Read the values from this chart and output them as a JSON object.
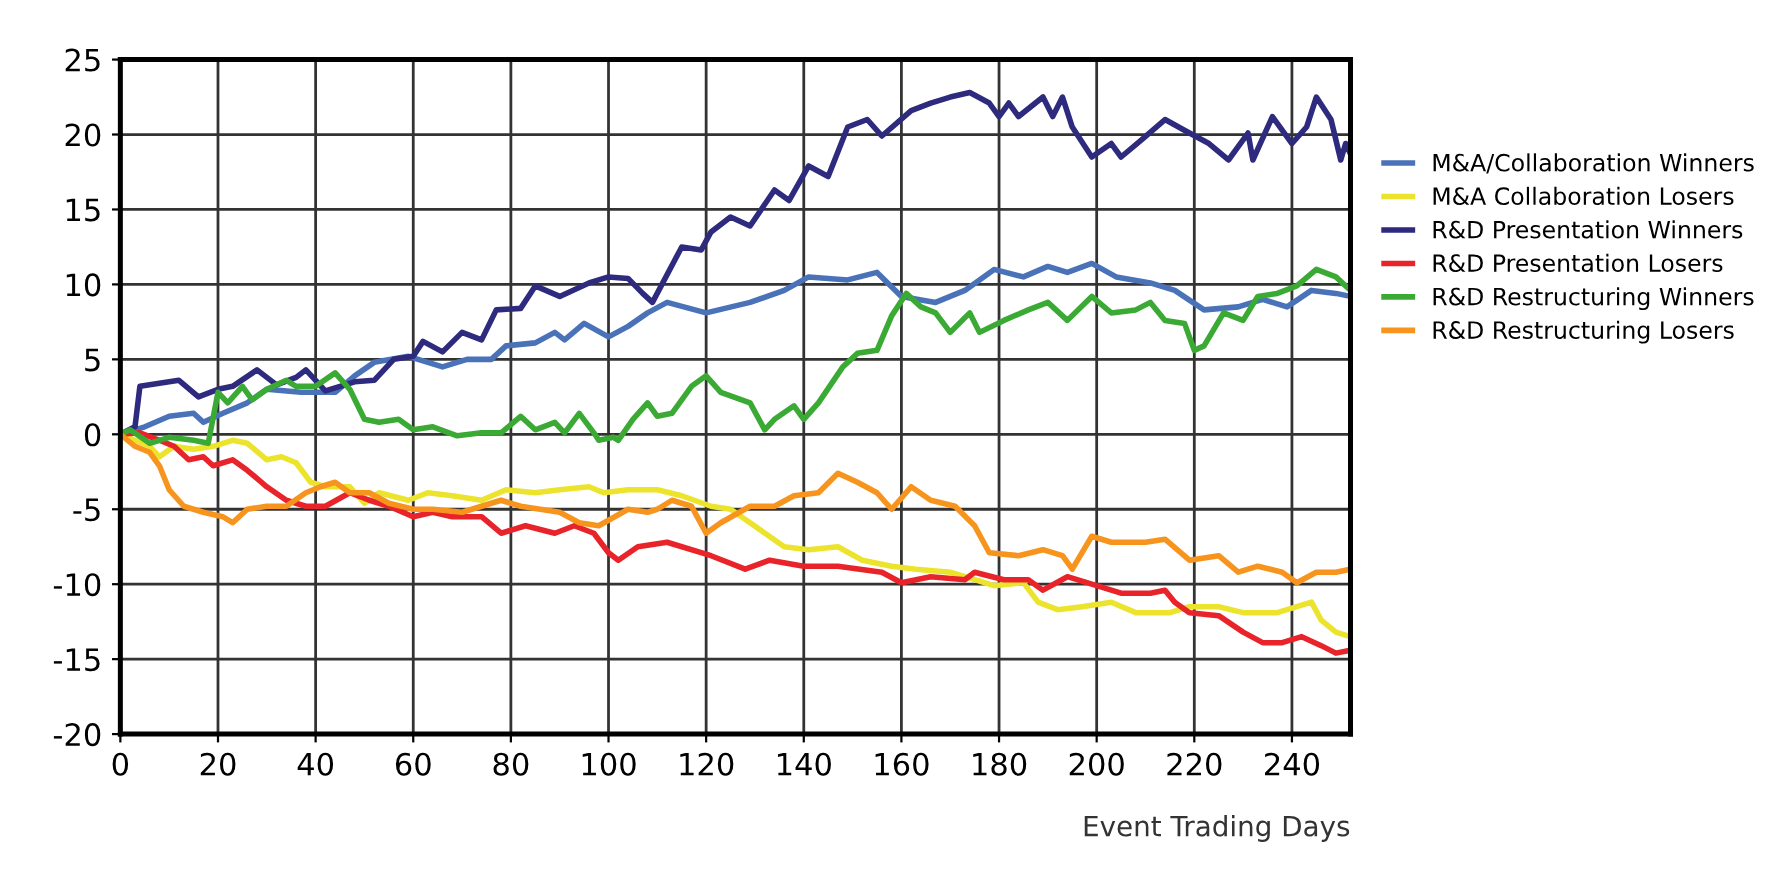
{
  "chart_data": {
    "type": "line",
    "xlabel": "Event Trading Days",
    "xlim": [
      0,
      252
    ],
    "xticks": [
      0,
      20,
      40,
      60,
      80,
      100,
      120,
      140,
      160,
      180,
      200,
      220,
      240
    ],
    "ylim": [
      -20,
      25
    ],
    "yticks": [
      -20,
      -15,
      -10,
      -5,
      0,
      5,
      10,
      15,
      20,
      25
    ],
    "grid": true,
    "legend": "right",
    "line_style": "solid",
    "marker": "none",
    "series": [
      {
        "name": "M&A/Collaboration Winners",
        "color": "#4a72b8",
        "x": [
          0,
          5,
          10,
          15,
          17,
          21,
          26,
          30,
          37,
          44,
          48,
          52,
          59,
          66,
          71,
          76,
          79,
          85,
          89,
          91,
          95,
          100,
          104,
          108,
          112,
          120,
          129,
          136,
          141,
          149,
          155,
          160,
          167,
          173,
          179,
          185,
          190,
          194,
          199,
          204,
          211,
          216,
          222,
          229,
          234,
          239,
          244,
          249,
          252
        ],
        "values": [
          0,
          0.5,
          1.2,
          1.4,
          0.8,
          1.4,
          2.1,
          3.0,
          2.8,
          2.8,
          3.9,
          4.8,
          5.2,
          4.5,
          5.0,
          5.0,
          5.9,
          6.1,
          6.8,
          6.3,
          7.4,
          6.5,
          7.2,
          8.1,
          8.8,
          8.1,
          8.8,
          9.6,
          10.5,
          10.3,
          10.8,
          9.2,
          8.8,
          9.6,
          11.0,
          10.5,
          11.2,
          10.8,
          11.4,
          10.5,
          10.1,
          9.6,
          8.3,
          8.5,
          9.0,
          8.5,
          9.6,
          9.4,
          9.2
        ]
      },
      {
        "name": "M&A Collaboration Losers",
        "color": "#ece42c",
        "x": [
          0,
          3,
          6,
          8,
          11,
          15,
          19,
          23,
          26,
          30,
          33,
          36,
          39,
          42,
          47,
          50,
          53,
          59,
          63,
          68,
          74,
          79,
          85,
          90,
          96,
          99,
          104,
          110,
          115,
          121,
          125,
          129,
          136,
          141,
          147,
          152,
          158,
          163,
          170,
          175,
          179,
          185,
          188,
          192,
          197,
          203,
          208,
          215,
          219,
          225,
          230,
          237,
          241,
          244,
          246,
          249,
          252
        ],
        "values": [
          0,
          -0.4,
          -0.8,
          -1.5,
          -0.8,
          -1.0,
          -0.8,
          -0.4,
          -0.6,
          -1.7,
          -1.5,
          -1.9,
          -3.2,
          -3.5,
          -3.5,
          -4.6,
          -3.9,
          -4.4,
          -3.9,
          -4.1,
          -4.4,
          -3.7,
          -3.9,
          -3.7,
          -3.5,
          -3.9,
          -3.7,
          -3.7,
          -4.1,
          -4.8,
          -5.0,
          -5.9,
          -7.5,
          -7.7,
          -7.5,
          -8.4,
          -8.8,
          -9.0,
          -9.2,
          -9.7,
          -10.1,
          -9.9,
          -11.2,
          -11.7,
          -11.5,
          -11.2,
          -11.9,
          -11.9,
          -11.5,
          -11.5,
          -11.9,
          -11.9,
          -11.5,
          -11.2,
          -12.4,
          -13.2,
          -13.5
        ]
      },
      {
        "name": "R&D Presentation Winners",
        "color": "#2e2a7e",
        "x": [
          0,
          3,
          4,
          8,
          12,
          16,
          20,
          23,
          28,
          32,
          36,
          38,
          42,
          48,
          52,
          56,
          60,
          62,
          66,
          70,
          74,
          77,
          82,
          85,
          90,
          96,
          100,
          104,
          107,
          109,
          115,
          119,
          121,
          125,
          129,
          134,
          137,
          141,
          145,
          149,
          153,
          156,
          162,
          166,
          170,
          174,
          178,
          180,
          182,
          184,
          189,
          191,
          193,
          195,
          199,
          203,
          205,
          209,
          214,
          219,
          223,
          227,
          231,
          232,
          236,
          240,
          243,
          245,
          248,
          250,
          251,
          252
        ],
        "values": [
          0,
          0.5,
          3.2,
          3.4,
          3.6,
          2.5,
          3.0,
          3.2,
          4.3,
          3.3,
          3.8,
          4.3,
          2.9,
          3.5,
          3.6,
          5.0,
          5.2,
          6.2,
          5.5,
          6.8,
          6.3,
          8.3,
          8.4,
          9.9,
          9.2,
          10.1,
          10.5,
          10.4,
          9.4,
          8.8,
          12.5,
          12.3,
          13.5,
          14.5,
          13.9,
          16.3,
          15.6,
          17.9,
          17.2,
          20.5,
          21.0,
          19.9,
          21.6,
          22.1,
          22.5,
          22.8,
          22.1,
          21.2,
          22.1,
          21.2,
          22.5,
          21.2,
          22.5,
          20.5,
          18.5,
          19.4,
          18.5,
          19.6,
          21.0,
          20.1,
          19.4,
          18.3,
          20.1,
          18.3,
          21.2,
          19.4,
          20.5,
          22.5,
          21.0,
          18.3,
          19.4,
          18.7
        ]
      },
      {
        "name": "R&D Presentation Losers",
        "color": "#e8242a",
        "x": [
          0,
          4,
          8,
          11,
          14,
          17,
          19,
          23,
          26,
          30,
          34,
          38,
          42,
          47,
          51,
          55,
          60,
          64,
          68,
          74,
          78,
          83,
          89,
          93,
          97,
          100,
          102,
          106,
          112,
          121,
          128,
          133,
          140,
          147,
          156,
          160,
          166,
          173,
          175,
          181,
          186,
          189,
          194,
          200,
          205,
          211,
          214,
          216,
          219,
          225,
          230,
          234,
          238,
          242,
          246,
          249,
          252
        ],
        "values": [
          0,
          0.1,
          -0.4,
          -0.8,
          -1.7,
          -1.5,
          -2.1,
          -1.7,
          -2.4,
          -3.5,
          -4.4,
          -4.8,
          -4.8,
          -3.9,
          -4.4,
          -4.8,
          -5.5,
          -5.2,
          -5.5,
          -5.5,
          -6.6,
          -6.1,
          -6.6,
          -6.1,
          -6.6,
          -7.9,
          -8.4,
          -7.5,
          -7.2,
          -8.1,
          -9.0,
          -8.4,
          -8.8,
          -8.8,
          -9.2,
          -9.9,
          -9.5,
          -9.7,
          -9.2,
          -9.7,
          -9.7,
          -10.4,
          -9.5,
          -10.1,
          -10.6,
          -10.6,
          -10.4,
          -11.2,
          -11.9,
          -12.1,
          -13.2,
          -13.9,
          -13.9,
          -13.5,
          -14.1,
          -14.6,
          -14.4
        ]
      },
      {
        "name": "R&D Restructuring Winners",
        "color": "#3aaa35",
        "x": [
          0,
          2,
          6,
          10,
          15,
          18,
          20,
          22,
          25,
          27,
          30,
          34,
          36,
          40,
          44,
          47,
          50,
          53,
          57,
          60,
          64,
          69,
          74,
          78,
          82,
          85,
          89,
          91,
          94,
          97,
          98,
          101,
          102,
          105,
          108,
          110,
          113,
          117,
          120,
          123,
          129,
          132,
          134,
          138,
          140,
          143,
          148,
          151,
          155,
          158,
          161,
          164,
          167,
          170,
          174,
          176,
          181,
          186,
          190,
          194,
          199,
          203,
          208,
          211,
          214,
          218,
          220,
          222,
          226,
          230,
          233,
          237,
          241,
          245,
          249,
          252
        ],
        "values": [
          0,
          0.3,
          -0.6,
          -0.2,
          -0.4,
          -0.6,
          2.8,
          2.1,
          3.2,
          2.3,
          3.0,
          3.6,
          3.2,
          3.2,
          4.1,
          3.0,
          1.0,
          0.8,
          1.0,
          0.3,
          0.5,
          -0.1,
          0.1,
          0.1,
          1.2,
          0.3,
          0.8,
          0.1,
          1.4,
          0.1,
          -0.4,
          -0.2,
          -0.4,
          1.0,
          2.1,
          1.2,
          1.4,
          3.2,
          3.9,
          2.8,
          2.1,
          0.3,
          1.0,
          1.9,
          1.0,
          2.1,
          4.5,
          5.4,
          5.6,
          7.9,
          9.4,
          8.5,
          8.1,
          6.8,
          8.1,
          6.8,
          7.6,
          8.3,
          8.8,
          7.6,
          9.2,
          8.1,
          8.3,
          8.8,
          7.6,
          7.4,
          5.6,
          5.9,
          8.1,
          7.6,
          9.2,
          9.4,
          9.9,
          11.0,
          10.5,
          9.6
        ]
      },
      {
        "name": "R&D Restructuring Losers",
        "color": "#f7941d",
        "x": [
          0,
          3,
          6,
          8,
          10,
          13,
          17,
          21,
          23,
          26,
          30,
          34,
          38,
          41,
          44,
          47,
          51,
          55,
          60,
          64,
          70,
          74,
          78,
          82,
          86,
          90,
          94,
          98,
          104,
          108,
          110,
          113,
          117,
          120,
          123,
          129,
          134,
          138,
          143,
          147,
          151,
          155,
          158,
          162,
          166,
          171,
          175,
          178,
          184,
          189,
          193,
          195,
          199,
          203,
          210,
          214,
          219,
          225,
          229,
          233,
          238,
          241,
          245,
          249,
          252
        ],
        "values": [
          0,
          -0.8,
          -1.2,
          -2.1,
          -3.7,
          -4.8,
          -5.2,
          -5.5,
          -5.9,
          -5.0,
          -4.8,
          -4.8,
          -3.9,
          -3.5,
          -3.2,
          -3.9,
          -3.9,
          -4.6,
          -5.0,
          -5.0,
          -5.2,
          -4.8,
          -4.4,
          -4.8,
          -5.0,
          -5.2,
          -5.9,
          -6.1,
          -5.0,
          -5.2,
          -5.0,
          -4.4,
          -4.8,
          -6.6,
          -5.9,
          -4.8,
          -4.8,
          -4.1,
          -3.9,
          -2.6,
          -3.2,
          -3.9,
          -5.0,
          -3.5,
          -4.4,
          -4.8,
          -6.1,
          -7.9,
          -8.1,
          -7.7,
          -8.1,
          -9.0,
          -6.8,
          -7.2,
          -7.2,
          -7.0,
          -8.4,
          -8.1,
          -9.2,
          -8.8,
          -9.2,
          -9.9,
          -9.2,
          -9.2,
          -9.0
        ]
      }
    ]
  }
}
